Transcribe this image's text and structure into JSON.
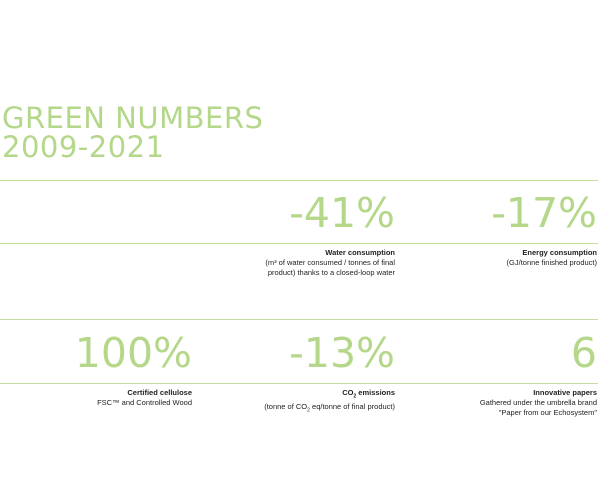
{
  "title": {
    "line1": "GREEN NUMBERS",
    "line2": "2009-2021"
  },
  "colors": {
    "accent": "#b4d78a",
    "rule": "#c3de9f",
    "text": "#222222"
  },
  "metrics": [
    {
      "value": "-41%",
      "heading": "Water consumption",
      "desc_line1": "(m³ of water consumed / tonnes of final",
      "desc_line2": "product) thanks to a closed-loop water"
    },
    {
      "value": "-17%",
      "heading": "Energy consumption",
      "desc_line1": "(GJ/tonne finished product)"
    },
    {
      "value": "100%",
      "heading": "Certified cellulose",
      "desc_line1": "FSC™ and Controlled Wood"
    },
    {
      "value": "-13%",
      "heading_pre": "CO",
      "heading_sub": "2",
      "heading_post": " emissions",
      "desc_pre": "(tonne of CO",
      "desc_sub": "2",
      "desc_post": " eq/tonne of final product)"
    },
    {
      "value": "6",
      "heading": "Innovative papers",
      "desc_line1": "Gathered under the umbrella brand",
      "desc_line2": "\"Paper from our Echosystem\""
    }
  ]
}
